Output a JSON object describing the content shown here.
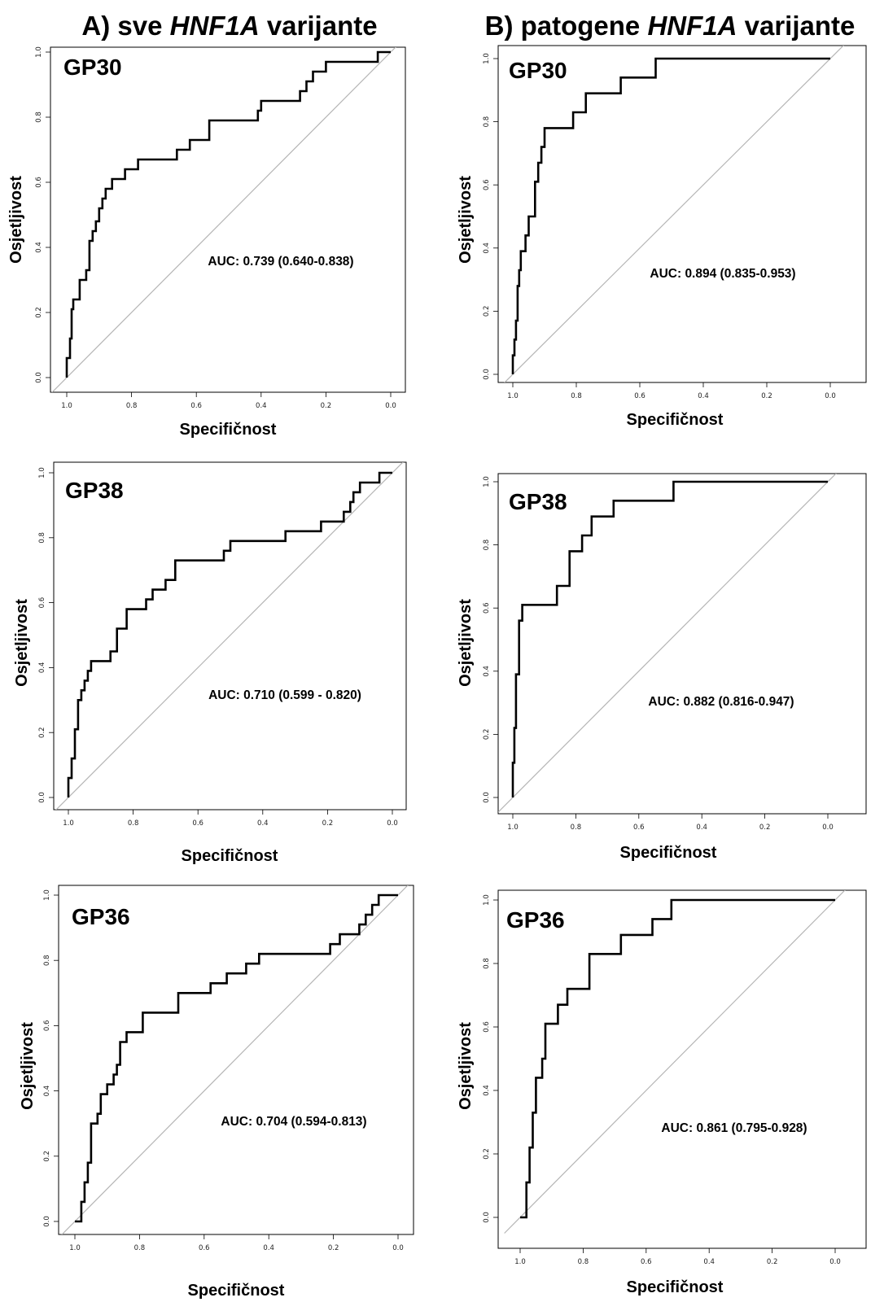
{
  "column_titles": [
    {
      "prefix": "A) sve ",
      "gene": "HNF1A",
      "suffix": " varijante"
    },
    {
      "prefix": "B) patogene ",
      "gene": "HNF1A",
      "suffix": " varijante"
    }
  ],
  "chart_data": [
    {
      "type": "line",
      "panel_label": "GP30",
      "column": "A",
      "auc_text": "AUC: 0.739 (0.640-0.838)",
      "xlabel": "Specifičnost",
      "ylabel": "Osjetljivost",
      "xlim": [
        1.0,
        0.0
      ],
      "ylim": [
        0.0,
        1.0
      ],
      "x_ticks": [
        "1.0",
        "0.8",
        "0.6",
        "0.4",
        "0.2",
        "0.0"
      ],
      "y_ticks": [
        "0.0",
        "0.2",
        "0.4",
        "0.6",
        "0.8",
        "1.0"
      ],
      "reference_line": true,
      "grid": false,
      "x": [
        1.0,
        1.0,
        0.99,
        0.99,
        0.985,
        0.985,
        0.98,
        0.98,
        0.96,
        0.96,
        0.94,
        0.94,
        0.93,
        0.93,
        0.92,
        0.92,
        0.91,
        0.91,
        0.9,
        0.9,
        0.89,
        0.89,
        0.88,
        0.88,
        0.87,
        0.87,
        0.86,
        0.86,
        0.85,
        0.85,
        0.82,
        0.82,
        0.78,
        0.78,
        0.66,
        0.66,
        0.62,
        0.62,
        0.56,
        0.56,
        0.41,
        0.41,
        0.4,
        0.4,
        0.28,
        0.28,
        0.26,
        0.26,
        0.24,
        0.24,
        0.2,
        0.2,
        0.04,
        0.04,
        0.0
      ],
      "y": [
        0.0,
        0.06,
        0.06,
        0.12,
        0.12,
        0.21,
        0.21,
        0.24,
        0.24,
        0.3,
        0.3,
        0.33,
        0.33,
        0.42,
        0.42,
        0.45,
        0.45,
        0.48,
        0.48,
        0.52,
        0.52,
        0.55,
        0.55,
        0.58,
        0.58,
        0.58,
        0.58,
        0.61,
        0.61,
        0.61,
        0.61,
        0.64,
        0.64,
        0.67,
        0.67,
        0.7,
        0.7,
        0.73,
        0.73,
        0.79,
        0.79,
        0.82,
        0.82,
        0.85,
        0.85,
        0.88,
        0.88,
        0.91,
        0.91,
        0.94,
        0.94,
        0.97,
        0.97,
        1.0,
        1.0
      ]
    },
    {
      "type": "line",
      "panel_label": "GP30",
      "column": "B",
      "auc_text": "AUC: 0.894 (0.835-0.953)",
      "xlabel": "Specifičnost",
      "ylabel": "Osjetljivost",
      "xlim": [
        1.0,
        0.0
      ],
      "ylim": [
        0.0,
        1.0
      ],
      "x_ticks": [
        "1.0",
        "0.8",
        "0.6",
        "0.4",
        "0.2",
        "0.0"
      ],
      "y_ticks": [
        "0.0",
        "0.2",
        "0.4",
        "0.6",
        "0.8",
        "1.0"
      ],
      "reference_line": true,
      "grid": false,
      "x": [
        1.0,
        1.0,
        0.995,
        0.995,
        0.99,
        0.99,
        0.985,
        0.985,
        0.98,
        0.98,
        0.975,
        0.975,
        0.97,
        0.97,
        0.96,
        0.96,
        0.95,
        0.95,
        0.93,
        0.93,
        0.92,
        0.92,
        0.91,
        0.91,
        0.9,
        0.9,
        0.81,
        0.81,
        0.77,
        0.77,
        0.66,
        0.66,
        0.55,
        0.55,
        0.0
      ],
      "y": [
        0.0,
        0.06,
        0.06,
        0.11,
        0.11,
        0.17,
        0.17,
        0.28,
        0.28,
        0.33,
        0.33,
        0.39,
        0.39,
        0.39,
        0.39,
        0.44,
        0.44,
        0.5,
        0.5,
        0.61,
        0.61,
        0.67,
        0.67,
        0.72,
        0.72,
        0.78,
        0.78,
        0.83,
        0.83,
        0.89,
        0.89,
        0.94,
        0.94,
        1.0,
        1.0
      ]
    },
    {
      "type": "line",
      "panel_label": "GP38",
      "column": "A",
      "auc_text": "AUC: 0.710 (0.599 - 0.820)",
      "xlabel": "Specifičnost",
      "ylabel": "Osjetljivost",
      "xlim": [
        1.0,
        0.0
      ],
      "ylim": [
        0.0,
        1.0
      ],
      "x_ticks": [
        "1.0",
        "0.8",
        "0.6",
        "0.4",
        "0.2",
        "0.0"
      ],
      "y_ticks": [
        "0.0",
        "0.2",
        "0.4",
        "0.6",
        "0.8",
        "1.0"
      ],
      "reference_line": true,
      "grid": false,
      "x": [
        1.0,
        1.0,
        0.99,
        0.99,
        0.98,
        0.98,
        0.97,
        0.97,
        0.96,
        0.96,
        0.95,
        0.95,
        0.94,
        0.94,
        0.93,
        0.93,
        0.87,
        0.87,
        0.85,
        0.85,
        0.82,
        0.82,
        0.76,
        0.76,
        0.74,
        0.74,
        0.7,
        0.7,
        0.67,
        0.67,
        0.52,
        0.52,
        0.5,
        0.5,
        0.33,
        0.33,
        0.22,
        0.22,
        0.15,
        0.15,
        0.13,
        0.13,
        0.12,
        0.12,
        0.1,
        0.1,
        0.04,
        0.04,
        0.02,
        0.02,
        0.0
      ],
      "y": [
        0.0,
        0.06,
        0.06,
        0.12,
        0.12,
        0.21,
        0.21,
        0.3,
        0.3,
        0.33,
        0.33,
        0.36,
        0.36,
        0.39,
        0.39,
        0.42,
        0.42,
        0.45,
        0.45,
        0.52,
        0.52,
        0.58,
        0.58,
        0.61,
        0.61,
        0.64,
        0.64,
        0.67,
        0.67,
        0.73,
        0.73,
        0.76,
        0.76,
        0.79,
        0.79,
        0.82,
        0.82,
        0.85,
        0.85,
        0.88,
        0.88,
        0.91,
        0.91,
        0.94,
        0.94,
        0.97,
        0.97,
        1.0,
        1.0,
        1.0,
        1.0
      ]
    },
    {
      "type": "line",
      "panel_label": "GP38",
      "column": "B",
      "auc_text": "AUC: 0.882 (0.816-0.947)",
      "xlabel": "Specifičnost",
      "ylabel": "Osjetljivost",
      "xlim": [
        1.0,
        0.0
      ],
      "ylim": [
        0.0,
        1.0
      ],
      "x_ticks": [
        "1.0",
        "0.8",
        "0.6",
        "0.4",
        "0.2",
        "0.0"
      ],
      "y_ticks": [
        "0.0",
        "0.2",
        "0.4",
        "0.6",
        "0.8",
        "1.0"
      ],
      "reference_line": true,
      "grid": false,
      "x": [
        1.0,
        1.0,
        0.995,
        0.995,
        0.99,
        0.99,
        0.98,
        0.98,
        0.97,
        0.97,
        0.96,
        0.96,
        0.95,
        0.95,
        0.86,
        0.86,
        0.82,
        0.82,
        0.78,
        0.78,
        0.75,
        0.75,
        0.68,
        0.68,
        0.49,
        0.49,
        0.0
      ],
      "y": [
        0.0,
        0.11,
        0.11,
        0.22,
        0.22,
        0.39,
        0.39,
        0.56,
        0.56,
        0.61,
        0.61,
        0.61,
        0.61,
        0.61,
        0.61,
        0.67,
        0.67,
        0.78,
        0.78,
        0.83,
        0.83,
        0.89,
        0.89,
        0.94,
        0.94,
        1.0,
        1.0
      ]
    },
    {
      "type": "line",
      "panel_label": "GP36",
      "column": "A",
      "auc_text": "AUC: 0.704 (0.594-0.813)",
      "xlabel": "Specifičnost",
      "ylabel": "Osjetljivost",
      "xlim": [
        1.0,
        0.0
      ],
      "ylim": [
        0.0,
        1.0
      ],
      "x_ticks": [
        "1.0",
        "0.8",
        "0.6",
        "0.4",
        "0.2",
        "0.0"
      ],
      "y_ticks": [
        "0.0",
        "0.2",
        "0.4",
        "0.6",
        "0.8",
        "1.0"
      ],
      "reference_line": true,
      "grid": false,
      "x": [
        1.0,
        0.98,
        0.98,
        0.97,
        0.97,
        0.96,
        0.96,
        0.95,
        0.95,
        0.93,
        0.93,
        0.92,
        0.92,
        0.9,
        0.9,
        0.88,
        0.88,
        0.87,
        0.87,
        0.86,
        0.86,
        0.84,
        0.84,
        0.79,
        0.79,
        0.68,
        0.68,
        0.58,
        0.58,
        0.53,
        0.53,
        0.47,
        0.47,
        0.43,
        0.43,
        0.21,
        0.21,
        0.18,
        0.18,
        0.12,
        0.12,
        0.1,
        0.1,
        0.08,
        0.08,
        0.06,
        0.06,
        0.04,
        0.04,
        0.0
      ],
      "y": [
        0.0,
        0.0,
        0.06,
        0.06,
        0.12,
        0.12,
        0.18,
        0.18,
        0.3,
        0.3,
        0.33,
        0.33,
        0.39,
        0.39,
        0.42,
        0.42,
        0.45,
        0.45,
        0.48,
        0.48,
        0.55,
        0.55,
        0.58,
        0.58,
        0.64,
        0.64,
        0.7,
        0.7,
        0.73,
        0.73,
        0.76,
        0.76,
        0.79,
        0.79,
        0.82,
        0.82,
        0.85,
        0.85,
        0.88,
        0.88,
        0.91,
        0.91,
        0.94,
        0.94,
        0.97,
        0.97,
        1.0,
        1.0,
        1.0,
        1.0
      ]
    },
    {
      "type": "line",
      "panel_label": "GP36",
      "column": "B",
      "auc_text": "AUC: 0.861 (0.795-0.928)",
      "xlabel": "Specifičnost",
      "ylabel": "Osjetljivost",
      "xlim": [
        1.0,
        0.0
      ],
      "ylim": [
        0.0,
        1.0
      ],
      "x_ticks": [
        "1.0",
        "0.8",
        "0.6",
        "0.4",
        "0.2",
        "0.0"
      ],
      "y_ticks": [
        "0.0",
        "0.2",
        "0.4",
        "0.6",
        "0.8",
        "1.0"
      ],
      "reference_line": true,
      "grid": false,
      "x": [
        1.0,
        0.98,
        0.98,
        0.97,
        0.97,
        0.96,
        0.96,
        0.95,
        0.95,
        0.93,
        0.93,
        0.92,
        0.92,
        0.88,
        0.88,
        0.85,
        0.85,
        0.82,
        0.82,
        0.78,
        0.78,
        0.68,
        0.68,
        0.58,
        0.58,
        0.52,
        0.52,
        0.0
      ],
      "y": [
        0.0,
        0.0,
        0.11,
        0.11,
        0.22,
        0.22,
        0.33,
        0.33,
        0.44,
        0.44,
        0.5,
        0.5,
        0.61,
        0.61,
        0.67,
        0.67,
        0.72,
        0.72,
        0.72,
        0.72,
        0.83,
        0.83,
        0.89,
        0.89,
        0.94,
        0.94,
        1.0,
        1.0
      ]
    }
  ]
}
